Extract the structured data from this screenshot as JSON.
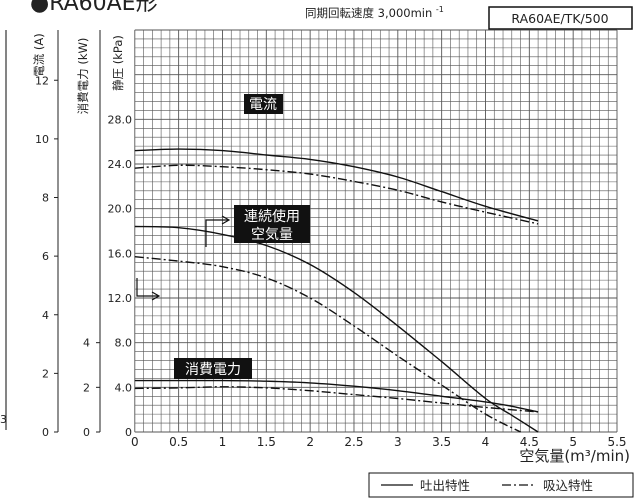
{
  "header": {
    "title": "●RA60AE形",
    "rated_speed": "同期回転速度 3,000min",
    "rated_speed_sup": "-1",
    "model": "RA60AE/TK/500"
  },
  "axes": {
    "current_label": "電流 (A)",
    "power_label": "消費電力 (kW)",
    "pressure_label": "静圧 (kPa)",
    "x_label": "空気量(m³/min)",
    "x_ticks": [
      "0",
      "0.5",
      "1",
      "1.5",
      "2",
      "2.5",
      "3",
      "3.5",
      "4",
      "4.5",
      "5",
      "5.5"
    ],
    "current_ticks": [
      "12",
      "10",
      "8",
      "6",
      "4",
      "2",
      "0"
    ],
    "pressure_ticks": [
      "28.0",
      "24.0",
      "20.0",
      "16.0",
      "12.0",
      "8.0",
      "4.0",
      "0"
    ],
    "power_ticks": [
      "4",
      "2",
      "0"
    ],
    "left_edge_label": "3"
  },
  "annotations": {
    "current": "電流",
    "continuous_line1": "連続使用",
    "continuous_line2": "空気量",
    "power": "消費電力"
  },
  "legend": {
    "discharge": "吐出特性",
    "suction": "吸込特性"
  },
  "colors": {
    "grid": "#555555",
    "line": "#111111",
    "label_bg": "#111111",
    "label_fg": "#ffffff"
  },
  "chart_data": {
    "type": "line",
    "title": "●RA60AE形",
    "xlabel": "空気量(m³/min)",
    "xlim": [
      0,
      5.5
    ],
    "ylim": [
      0,
      36
    ],
    "ylabel": "静圧 (kPa)",
    "series": [
      {
        "name": "電流",
        "style": "solid",
        "axis": "current",
        "x": [
          0,
          0.5,
          1.0,
          1.5,
          2.0,
          2.5,
          3.0,
          3.5,
          4.0,
          4.6
        ],
        "y": [
          9.6,
          9.65,
          9.6,
          9.45,
          9.3,
          9.05,
          8.7,
          8.2,
          7.7,
          7.2
        ]
      },
      {
        "name": "電流",
        "style": "dashdot",
        "axis": "current",
        "x": [
          0,
          0.5,
          1.0,
          1.5,
          2.0,
          2.5,
          3.0,
          3.5,
          4.0,
          4.6
        ],
        "y": [
          9.0,
          9.1,
          9.05,
          8.95,
          8.8,
          8.55,
          8.25,
          7.85,
          7.5,
          7.1
        ]
      },
      {
        "name": "静圧",
        "style": "solid",
        "axis": "pressure",
        "x": [
          0,
          0.5,
          1.0,
          1.5,
          2.0,
          2.5,
          3.0,
          3.5,
          4.0,
          4.3,
          4.6
        ],
        "y": [
          18.4,
          18.3,
          17.7,
          16.7,
          15.0,
          12.5,
          9.5,
          6.3,
          3.0,
          1.5,
          0
        ]
      },
      {
        "name": "静圧",
        "style": "dashdot",
        "axis": "pressure",
        "x": [
          0,
          0.5,
          1.0,
          1.5,
          2.0,
          2.5,
          3.0,
          3.5,
          4.0,
          4.4
        ],
        "y": [
          15.7,
          15.3,
          14.8,
          13.8,
          12.0,
          9.5,
          6.8,
          4.2,
          1.6,
          0
        ]
      },
      {
        "name": "消費電力",
        "style": "solid",
        "axis": "pressure",
        "x": [
          0,
          0.5,
          1.0,
          1.5,
          2.0,
          2.5,
          3.0,
          3.5,
          4.0,
          4.3,
          4.6
        ],
        "y": [
          4.6,
          4.6,
          4.6,
          4.55,
          4.4,
          4.1,
          3.7,
          3.2,
          2.7,
          2.3,
          1.8
        ]
      },
      {
        "name": "消費電力",
        "style": "dashdot",
        "axis": "pressure",
        "x": [
          0,
          0.5,
          1.0,
          1.5,
          2.0,
          2.5,
          3.0,
          3.5,
          4.0,
          4.6
        ],
        "y": [
          3.9,
          3.95,
          4.05,
          3.95,
          3.7,
          3.35,
          3.0,
          2.6,
          2.2,
          1.8
        ]
      }
    ]
  }
}
